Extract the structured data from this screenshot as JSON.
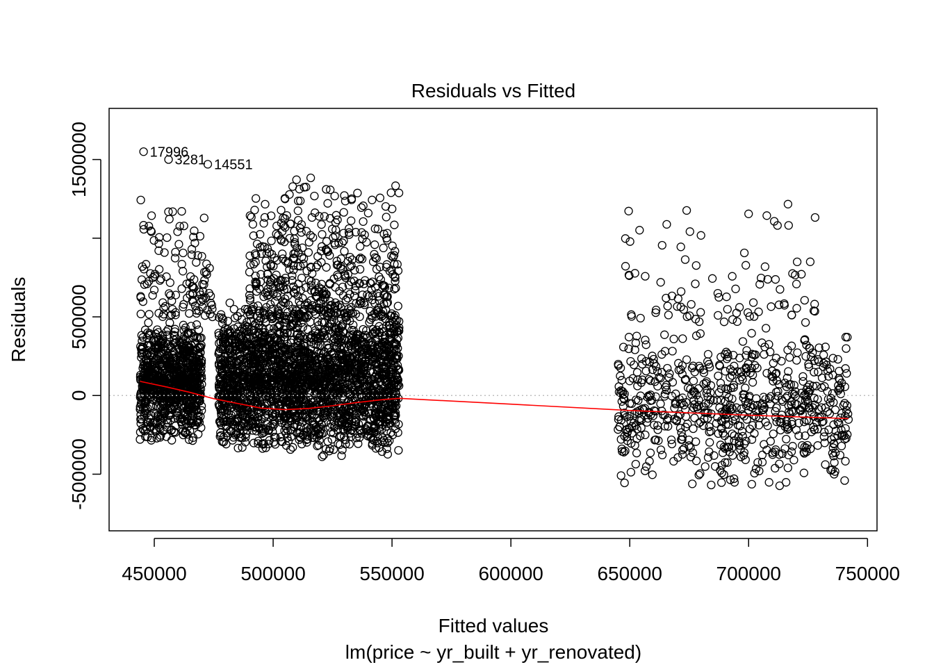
{
  "chart_data": {
    "type": "scatter",
    "title": "Residuals vs Fitted",
    "xlabel": "Fitted values",
    "subtitle": "lm(price ~ yr_built + yr_renovated)",
    "ylabel": "Residuals",
    "xlim": [
      431000,
      754000
    ],
    "ylim": [
      -860000,
      1825000
    ],
    "x_ticks": [
      {
        "value": 450000,
        "label": "450000"
      },
      {
        "value": 500000,
        "label": "500000"
      },
      {
        "value": 550000,
        "label": "550000"
      },
      {
        "value": 600000,
        "label": "600000"
      },
      {
        "value": 650000,
        "label": "650000"
      },
      {
        "value": 700000,
        "label": "700000"
      },
      {
        "value": 750000,
        "label": "750000"
      }
    ],
    "y_ticks": [
      {
        "value": -500000,
        "label": "-500000"
      },
      {
        "value": 0,
        "label": "0"
      },
      {
        "value": 500000,
        "label": "500000"
      },
      {
        "value": 1000000,
        "label": ""
      },
      {
        "value": 1500000,
        "label": "1500000"
      }
    ],
    "reference_line": {
      "y": 0,
      "style": "dotted",
      "color": "#bebebe"
    },
    "point_clusters": [
      {
        "x_range": [
          444000,
          470000
        ],
        "y_range": [
          -310000,
          480000
        ],
        "count": 900
      },
      {
        "x_range": [
          477000,
          553000
        ],
        "y_range": [
          -400000,
          600000
        ],
        "count": 2400
      },
      {
        "x_range": [
          490000,
          553000
        ],
        "y_range": [
          500000,
          1450000
        ],
        "count": 450
      },
      {
        "x_range": [
          444000,
          475000
        ],
        "y_range": [
          500000,
          1300000
        ],
        "count": 120
      },
      {
        "x_range": [
          645000,
          742000
        ],
        "y_range": [
          -600000,
          450000
        ],
        "count": 700
      },
      {
        "x_range": [
          648000,
          728000
        ],
        "y_range": [
          450000,
          1250000
        ],
        "count": 90
      }
    ],
    "labeled_points": [
      {
        "x": 445500,
        "y": 1550000,
        "label": "17996"
      },
      {
        "x": 456000,
        "y": 1500000,
        "label": "3281"
      },
      {
        "x": 472500,
        "y": 1470000,
        "label": "14551"
      }
    ],
    "smoother": {
      "color": "#ff0000",
      "points": [
        [
          444000,
          90000
        ],
        [
          455000,
          55000
        ],
        [
          465000,
          20000
        ],
        [
          475000,
          -20000
        ],
        [
          485000,
          -50000
        ],
        [
          495000,
          -80000
        ],
        [
          505000,
          -90000
        ],
        [
          515000,
          -82000
        ],
        [
          525000,
          -65000
        ],
        [
          535000,
          -45000
        ],
        [
          545000,
          -28000
        ],
        [
          553000,
          -18000
        ],
        [
          600000,
          -55000
        ],
        [
          650000,
          -95000
        ],
        [
          700000,
          -125000
        ],
        [
          742000,
          -147000
        ]
      ]
    }
  }
}
